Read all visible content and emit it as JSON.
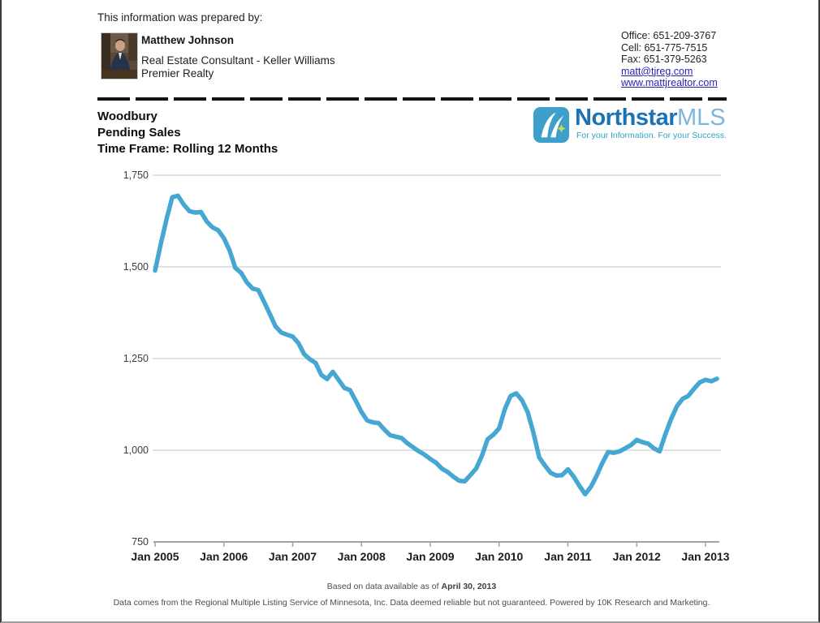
{
  "page": {
    "prepared_by_label": "This information was prepared by:"
  },
  "agent": {
    "name": "Matthew Johnson",
    "role_line1": "Real Estate Consultant - Keller Williams",
    "role_line2": "Premier Realty",
    "contact": {
      "office": "Office: 651-209-3767",
      "cell": "Cell: 651-775-7515",
      "fax": "Fax: 651-379-5263",
      "email": "matt@tjreg.com",
      "website": "www.mattjrealtor.com"
    }
  },
  "report": {
    "location": "Woodbury",
    "metric": "Pending Sales",
    "timeframe": "Time Frame: Rolling 12 Months"
  },
  "brand": {
    "name_primary": "Northstar",
    "name_secondary": "MLS",
    "tagline": "For your Information. For your Success.",
    "colors": {
      "icon_bg": "#3E9FCB",
      "primary_text": "#1B72B4",
      "secondary_text": "#7DB6DC",
      "tagline_text": "#2FA3C2",
      "star": "#C6DC52"
    }
  },
  "chart_data": {
    "type": "line",
    "title": "Woodbury Pending Sales - Rolling 12 Months",
    "x_start": "Jan 2005",
    "x_end": "Mar 2013",
    "x_interval": "monthly",
    "x_tick_labels": [
      "Jan 2005",
      "Jan 2006",
      "Jan 2007",
      "Jan 2008",
      "Jan 2009",
      "Jan 2010",
      "Jan 2011",
      "Jan 2012",
      "Jan 2013"
    ],
    "ylim": [
      750,
      1750
    ],
    "yticks": [
      {
        "value": 750,
        "label": "750"
      },
      {
        "value": 1000,
        "label": "1,000"
      },
      {
        "value": 1250,
        "label": "1,250"
      },
      {
        "value": 1500,
        "label": "1,500"
      },
      {
        "value": 1750,
        "label": "1,750"
      }
    ],
    "grid": "horizontal-only",
    "legend": "none",
    "line_color": "#45A7D2",
    "series": [
      {
        "name": "Pending Sales (rolling 12 months)",
        "values": [
          1490,
          1563,
          1630,
          1690,
          1694,
          1670,
          1652,
          1648,
          1650,
          1624,
          1608,
          1600,
          1578,
          1545,
          1497,
          1484,
          1458,
          1441,
          1437,
          1405,
          1372,
          1338,
          1321,
          1315,
          1310,
          1292,
          1262,
          1248,
          1238,
          1205,
          1194,
          1214,
          1192,
          1170,
          1164,
          1135,
          1104,
          1081,
          1076,
          1074,
          1056,
          1041,
          1037,
          1033,
          1019,
          1008,
          997,
          988,
          976,
          966,
          950,
          941,
          928,
          917,
          915,
          932,
          950,
          985,
          1030,
          1042,
          1060,
          1112,
          1148,
          1155,
          1136,
          1103,
          1047,
          980,
          958,
          938,
          931,
          932,
          948,
          928,
          903,
          880,
          900,
          930,
          965,
          995,
          993,
          997,
          1005,
          1014,
          1028,
          1022,
          1018,
          1005,
          997,
          1044,
          1085,
          1120,
          1140,
          1148,
          1168,
          1185,
          1192,
          1188,
          1195
        ]
      }
    ]
  },
  "footer": {
    "based_prefix": "Based on data available as of ",
    "based_date": "April 30, 2013",
    "disclaimer": "Data comes from the Regional Multiple Listing Service of Minnesota, Inc. Data deemed reliable but not guaranteed. Powered by 10K Research and Marketing."
  }
}
